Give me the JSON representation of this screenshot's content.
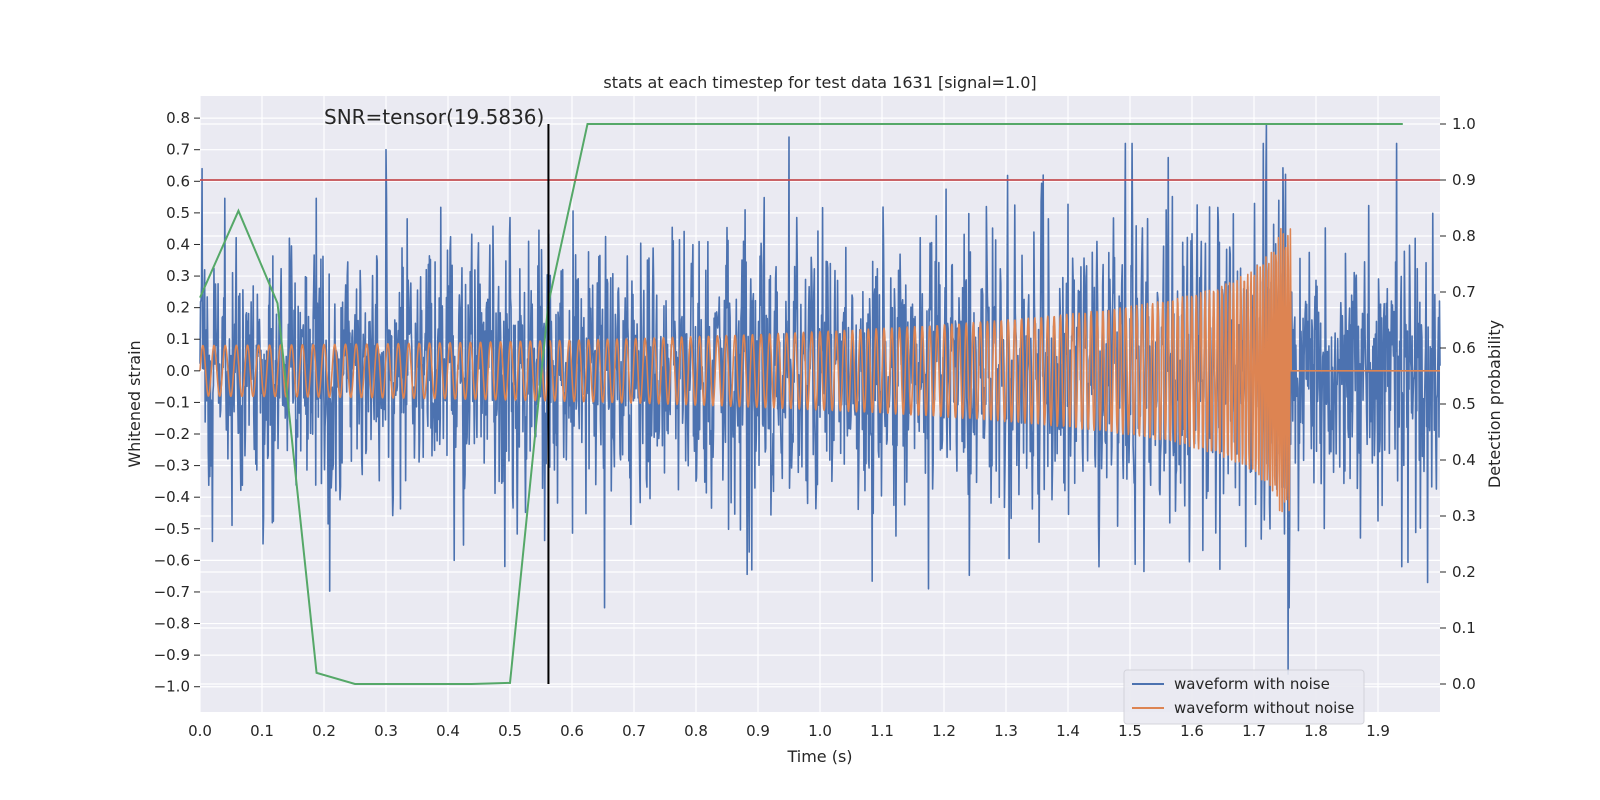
{
  "chart_data": {
    "type": "line",
    "title": "stats at each timestep for test data 1631 [signal=1.0]",
    "xlabel": "Time (s)",
    "ylabel": "Whitened strain",
    "ylabel_right": "Detection probability",
    "xlim": [
      0.0,
      2.0
    ],
    "ylim": [
      -1.08,
      0.87
    ],
    "ylim_right": [
      -0.05,
      1.05
    ],
    "xticks": [
      0.0,
      0.1,
      0.2,
      0.3,
      0.4,
      0.5,
      0.6,
      0.7,
      0.8,
      0.9,
      1.0,
      1.1,
      1.2,
      1.3,
      1.4,
      1.5,
      1.6,
      1.7,
      1.8,
      1.9
    ],
    "xtick_labels": [
      "0.0",
      "0.1",
      "0.2",
      "0.3",
      "0.4",
      "0.5",
      "0.6",
      "0.7",
      "0.8",
      "0.9",
      "1.0",
      "1.1",
      "1.2",
      "1.3",
      "1.4",
      "1.5",
      "1.6",
      "1.7",
      "1.8",
      "1.9"
    ],
    "yticks": [
      0.8,
      0.7,
      0.6,
      0.5,
      0.4,
      0.3,
      0.2,
      0.1,
      0.0,
      -0.1,
      -0.2,
      -0.3,
      -0.4,
      -0.5,
      -0.6,
      -0.7,
      -0.8,
      -0.9,
      -1.0
    ],
    "ytick_labels": [
      "0.8",
      "0.7",
      "0.6",
      "0.5",
      "0.4",
      "0.3",
      "0.2",
      "0.1",
      "0.0",
      "−0.1",
      "−0.2",
      "−0.3",
      "−0.4",
      "−0.5",
      "−0.6",
      "−0.7",
      "−0.8",
      "−0.9",
      "−1.0"
    ],
    "yticks_right": [
      1.0,
      0.9,
      0.8,
      0.7,
      0.6,
      0.5,
      0.4,
      0.3,
      0.2,
      0.1,
      0.0
    ],
    "ytick_labels_right": [
      "1.0",
      "0.9",
      "0.8",
      "0.7",
      "0.6",
      "0.5",
      "0.4",
      "0.3",
      "0.2",
      "0.1",
      "0.0"
    ],
    "grid": true,
    "legend_position": "lower-right",
    "annotation": "SNR=tensor(19.5836)",
    "vline_x": 0.562,
    "threshold_y_right": 0.9,
    "series": [
      {
        "name": "waveform with noise",
        "color": "#4c72b0",
        "axis": "left",
        "x_start": 0.0,
        "x_end": 2.0,
        "noise_std": 0.2,
        "extreme_points": [
          {
            "x": 0.003,
            "y": 0.64
          },
          {
            "x": 0.02,
            "y": -0.54
          },
          {
            "x": 0.3,
            "y": 0.7
          },
          {
            "x": 0.41,
            "y": -0.6
          },
          {
            "x": 0.95,
            "y": 0.74
          },
          {
            "x": 0.89,
            "y": -0.63
          },
          {
            "x": 1.175,
            "y": -0.69
          },
          {
            "x": 1.45,
            "y": -0.62
          },
          {
            "x": 1.72,
            "y": 0.78
          },
          {
            "x": 1.755,
            "y": -0.96
          },
          {
            "x": 1.93,
            "y": 0.72
          },
          {
            "x": 1.98,
            "y": -0.67
          }
        ]
      },
      {
        "name": "waveform without noise",
        "color": "#dd8452",
        "axis": "left",
        "x_start": 0.0,
        "x_end": 2.0,
        "chirp_end": 1.76,
        "amplitude_start": 0.08,
        "amplitude_peak": 0.45,
        "frequency_start": 55,
        "frequency_peak": 260,
        "post_merger_value": 0.0
      },
      {
        "name": "",
        "color": "#55a868",
        "axis": "right",
        "x": [
          0.0,
          0.062,
          0.125,
          0.188,
          0.25,
          0.312,
          0.375,
          0.438,
          0.5,
          0.562,
          0.625,
          0.688,
          0.75,
          1.0,
          1.25,
          1.5,
          1.75,
          1.94
        ],
        "y": [
          0.69,
          0.845,
          0.68,
          0.02,
          0.0,
          0.0,
          0.0,
          0.0,
          0.002,
          0.68,
          1.0,
          1.0,
          1.0,
          1.0,
          1.0,
          1.0,
          1.0,
          1.0
        ]
      }
    ],
    "legend": [
      "waveform with noise",
      "waveform without noise"
    ],
    "colors": {
      "background": "#eaeaf2",
      "grid": "#ffffff",
      "threshold": "#c44e52",
      "vline": "#000000",
      "text": "#262626"
    }
  }
}
